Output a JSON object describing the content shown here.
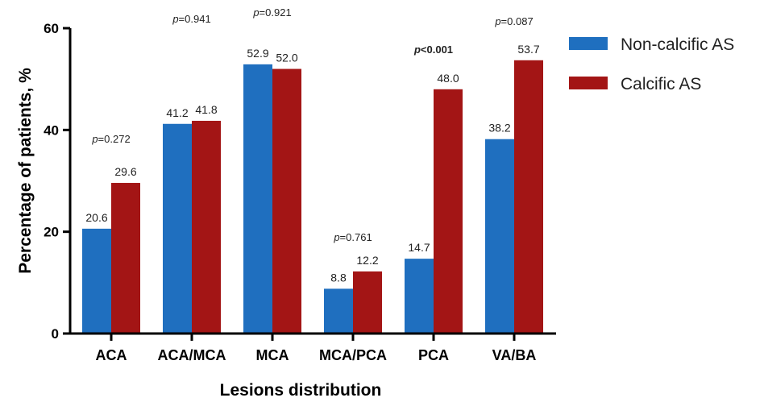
{
  "chart_data": {
    "type": "bar",
    "xlabel": "Lesions distribution",
    "ylabel": "Percentage of patients, %",
    "ylim": [
      0,
      60
    ],
    "yticks": [
      "0",
      "20",
      "40",
      "60"
    ],
    "grid": false,
    "legend_position": "top-right",
    "categories": [
      "ACA",
      "ACA/MCA",
      "MCA",
      "MCA/PCA",
      "PCA",
      "VA/BA"
    ],
    "series": [
      {
        "name": "Non-calcific AS",
        "color": "#1f6fbf",
        "values": [
          20.6,
          41.2,
          52.9,
          8.8,
          14.7,
          38.2
        ],
        "labels": [
          "20.6",
          "41.2",
          "52.9",
          "8.8",
          "14.7",
          "38.2"
        ]
      },
      {
        "name": "Calcific AS",
        "color": "#a31515",
        "values": [
          29.6,
          41.8,
          52.0,
          12.2,
          48.0,
          53.7
        ],
        "labels": [
          "29.6",
          "41.8",
          "52.0",
          "12.2",
          "48.0",
          "53.7"
        ]
      }
    ],
    "p_values": [
      {
        "prefix": "p",
        "rest": "=0.272",
        "bold": false
      },
      {
        "prefix": "p",
        "rest": "=0.941",
        "bold": false
      },
      {
        "prefix": "p",
        "rest": "=0.921",
        "bold": false
      },
      {
        "prefix": "p",
        "rest": "=0.761",
        "bold": false
      },
      {
        "prefix": "p",
        "rest": "<0.001",
        "bold": true
      },
      {
        "prefix": "p",
        "rest": "=0.087",
        "bold": false
      }
    ]
  }
}
